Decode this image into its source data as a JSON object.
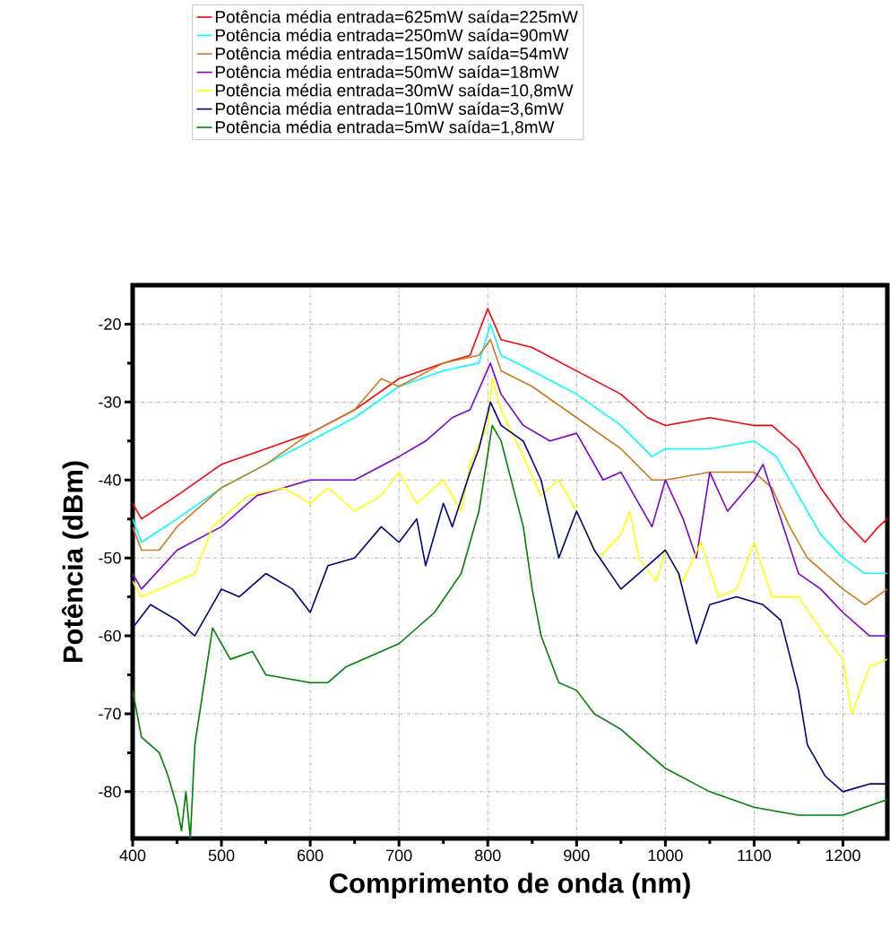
{
  "chart_data": {
    "type": "line",
    "xlabel": "Comprimento de onda (nm)",
    "ylabel": "Potência (dBm)",
    "xlim": [
      400,
      1250
    ],
    "ylim": [
      -86,
      -15
    ],
    "xticks": [
      400,
      500,
      600,
      700,
      800,
      900,
      1000,
      1100,
      1200
    ],
    "yticks": [
      -80,
      -70,
      -60,
      -50,
      -40,
      -30,
      -20
    ],
    "grid": true,
    "legend": "top",
    "series": [
      {
        "name": "Potência média entrada=625mW saída=225mW",
        "color": "#ff0000",
        "x": [
          400,
          410,
          450,
          500,
          550,
          600,
          650,
          700,
          750,
          780,
          800,
          815,
          850,
          900,
          950,
          980,
          1000,
          1050,
          1100,
          1120,
          1150,
          1175,
          1200,
          1225,
          1240,
          1250
        ],
        "values": [
          -43,
          -45,
          -42,
          -38,
          -36,
          -34,
          -31,
          -27,
          -25,
          -24,
          -18,
          -22,
          -23,
          -26,
          -29,
          -32,
          -33,
          -32,
          -33,
          -33,
          -36,
          -41,
          -45,
          -48,
          -46,
          -45
        ]
      },
      {
        "name": "Potência média entrada=250mW saída=90mW",
        "color": "#00ffff",
        "x": [
          400,
          410,
          450,
          500,
          550,
          600,
          650,
          700,
          750,
          790,
          803,
          815,
          850,
          900,
          950,
          985,
          1000,
          1050,
          1100,
          1125,
          1150,
          1175,
          1200,
          1225,
          1250
        ],
        "values": [
          -45,
          -48,
          -45,
          -41,
          -38,
          -35,
          -32,
          -28,
          -26,
          -25,
          -20,
          -24,
          -26,
          -29,
          -33,
          -37,
          -36,
          -36,
          -35,
          -37,
          -42,
          -47,
          -50,
          -52,
          -52
        ]
      },
      {
        "name": "Potência média entrada=150mW saída=54mW",
        "color": "#cc7a1a",
        "x": [
          400,
          410,
          430,
          450,
          500,
          550,
          600,
          650,
          680,
          700,
          750,
          790,
          803,
          815,
          850,
          900,
          950,
          985,
          1000,
          1050,
          1100,
          1120,
          1140,
          1160,
          1200,
          1225,
          1250
        ],
        "values": [
          -46,
          -49,
          -49,
          -46,
          -41,
          -38,
          -34,
          -31,
          -27,
          -28,
          -25,
          -24,
          -22,
          -26,
          -28,
          -32,
          -36,
          -40,
          -40,
          -39,
          -39,
          -41,
          -46,
          -50,
          -54,
          -56,
          -54
        ]
      },
      {
        "name": "Potência média entrada=50mW saída=18mW",
        "color": "#7f00cc",
        "x": [
          400,
          410,
          450,
          500,
          540,
          600,
          650,
          700,
          730,
          760,
          780,
          803,
          815,
          840,
          870,
          900,
          930,
          950,
          970,
          985,
          1000,
          1020,
          1035,
          1050,
          1070,
          1100,
          1110,
          1130,
          1150,
          1175,
          1200,
          1230,
          1250
        ],
        "values": [
          -52,
          -54,
          -49,
          -46,
          -42,
          -40,
          -40,
          -37,
          -35,
          -32,
          -31,
          -25,
          -29,
          -33,
          -35,
          -34,
          -40,
          -39,
          -43,
          -46,
          -40,
          -45,
          -50,
          -39,
          -44,
          -40,
          -38,
          -45,
          -52,
          -54,
          -57,
          -60,
          -60
        ]
      },
      {
        "name": "Potência média entrada=30mW saída=10,8mW",
        "color": "#ffff00",
        "x": [
          400,
          410,
          450,
          470,
          490,
          530,
          570,
          600,
          620,
          650,
          680,
          700,
          720,
          750,
          770,
          780,
          800,
          805,
          815,
          840,
          860,
          880,
          900,
          925,
          950,
          960,
          970,
          990,
          1000,
          1020,
          1040,
          1060,
          1080,
          1100,
          1120,
          1150,
          1180,
          1200,
          1210,
          1230,
          1250
        ],
        "values": [
          -53,
          -55,
          -53,
          -52,
          -46,
          -42,
          -41,
          -43,
          -41,
          -44,
          -42,
          -39,
          -43,
          -40,
          -44,
          -38,
          -33,
          -27,
          -31,
          -37,
          -42,
          -40,
          -44,
          -50,
          -47,
          -44,
          -50,
          -53,
          -49,
          -53,
          -48,
          -55,
          -54,
          -48,
          -55,
          -55,
          -60,
          -63,
          -70,
          -64,
          -63
        ]
      },
      {
        "name": "Potência média entrada=10mW saída=3,6mW",
        "color": "#000080",
        "x": [
          400,
          420,
          450,
          470,
          500,
          520,
          550,
          580,
          600,
          620,
          650,
          680,
          700,
          720,
          730,
          750,
          760,
          780,
          790,
          803,
          815,
          840,
          860,
          880,
          900,
          920,
          950,
          970,
          1000,
          1015,
          1035,
          1050,
          1080,
          1110,
          1130,
          1150,
          1160,
          1180,
          1200,
          1230,
          1250
        ],
        "values": [
          -59,
          -56,
          -58,
          -60,
          -54,
          -55,
          -52,
          -54,
          -57,
          -51,
          -50,
          -46,
          -48,
          -45,
          -51,
          -43,
          -46,
          -39,
          -36,
          -30,
          -33,
          -35,
          -40,
          -50,
          -44,
          -49,
          -54,
          -52,
          -49,
          -52,
          -61,
          -56,
          -55,
          -56,
          -58,
          -67,
          -74,
          -78,
          -80,
          -79,
          -79
        ]
      },
      {
        "name": "Potência média entrada=5mW saída=1,8mW",
        "color": "#008000",
        "x": [
          400,
          410,
          430,
          440,
          450,
          455,
          460,
          465,
          470,
          490,
          510,
          535,
          550,
          600,
          620,
          640,
          700,
          740,
          770,
          790,
          805,
          815,
          840,
          850,
          860,
          880,
          900,
          920,
          950,
          1000,
          1050,
          1100,
          1150,
          1200,
          1250
        ],
        "values": [
          -67,
          -73,
          -75,
          -78,
          -82,
          -85,
          -80,
          -86,
          -74,
          -59,
          -63,
          -62,
          -65,
          -66,
          -66,
          -64,
          -61,
          -57,
          -52,
          -44,
          -33,
          -35,
          -46,
          -54,
          -60,
          -66,
          -67,
          -70,
          -72,
          -77,
          -80,
          -82,
          -83,
          -83,
          -81
        ]
      }
    ]
  }
}
